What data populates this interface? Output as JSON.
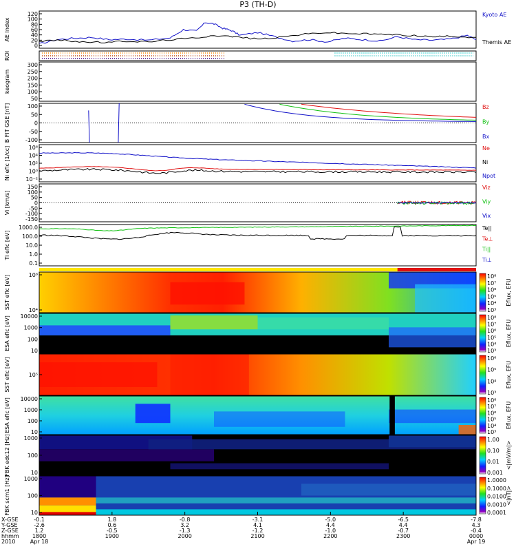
{
  "title": "P3 (TH-D)",
  "colors": {
    "blue": "#1010c8",
    "red": "#e01010",
    "green": "#10c010",
    "black": "#000000",
    "cyan": "#00c8c8",
    "orange": "#ff8c00",
    "yellow": "#ffe600"
  },
  "chart_data": {
    "type": "line",
    "time_axis": {
      "start": "2010-04-18 17:30",
      "end": "2010-04-19 00:30",
      "tick_times": [
        "1800",
        "1900",
        "2000",
        "2100",
        "2200",
        "2300",
        "0000"
      ],
      "rows": [
        {
          "label": "X-GSE",
          "values": [
            "-0.1",
            "1.8",
            "-0.8",
            "-3.1",
            "-5.0",
            "-6.5",
            "-7.8"
          ]
        },
        {
          "label": "Y-GSE",
          "values": [
            "-2.6",
            "0.6",
            "3.2",
            "4.1",
            "4.4",
            "4.4",
            "4.3"
          ]
        },
        {
          "label": "Z-GSE",
          "values": [
            "1.2",
            "-0.5",
            "-1.3",
            "-1.2",
            "-1.0",
            "-0.7",
            "-0.4"
          ]
        },
        {
          "label": "hhmm",
          "values": [
            "1800",
            "1900",
            "2000",
            "2100",
            "2200",
            "2300",
            "0000"
          ]
        },
        {
          "label": "2010",
          "values": [
            "Apr 18",
            "",
            "",
            "",
            "",
            "",
            "Apr 19"
          ]
        }
      ]
    },
    "panels": [
      {
        "id": "ae",
        "ylabel": "AE Index",
        "yticks": [
          "120",
          "100",
          "80",
          "60",
          "40",
          "20",
          "0"
        ],
        "legend": [
          "Kyoto AE",
          "Themis AE"
        ],
        "series": [
          {
            "name": "Kyoto AE",
            "color": "#1010c8",
            "x": [
              0,
              0.04,
              0.08,
              0.12,
              0.16,
              0.2,
              0.25,
              0.3,
              0.33,
              0.36,
              0.38,
              0.4,
              0.42,
              0.44,
              0.46,
              0.5,
              0.54,
              0.58,
              0.62,
              0.66,
              0.7,
              0.74,
              0.78,
              0.82,
              0.86,
              0.9,
              0.94,
              0.98,
              1.0
            ],
            "y": [
              15,
              30,
              35,
              38,
              30,
              32,
              28,
              36,
              65,
              60,
              90,
              85,
              70,
              62,
              45,
              55,
              40,
              25,
              30,
              22,
              35,
              30,
              25,
              40,
              30,
              28,
              32,
              45,
              30
            ]
          },
          {
            "name": "Themis AE",
            "color": "#000000",
            "x": [
              0,
              0.05,
              0.1,
              0.15,
              0.2,
              0.25,
              0.3,
              0.35,
              0.4,
              0.45,
              0.5,
              0.55,
              0.6,
              0.65,
              0.7,
              0.75,
              0.8,
              0.85,
              0.9,
              0.95,
              1.0
            ],
            "y": [
              25,
              28,
              22,
              20,
              25,
              22,
              30,
              35,
              45,
              40,
              32,
              38,
              48,
              55,
              52,
              50,
              48,
              45,
              40,
              42,
              38
            ]
          }
        ]
      },
      {
        "id": "roi",
        "ylabel": "ROI"
      },
      {
        "id": "keogram",
        "ylabel": "keogram",
        "yticks": [
          "300",
          "250",
          "200",
          "150",
          "100",
          "50"
        ]
      },
      {
        "id": "bfit",
        "ylabel": "B FIT GSE [nT]",
        "yticks": [
          "100",
          "50",
          "0",
          "-50",
          "-100"
        ],
        "legend": [
          "Bz",
          "By",
          "Bx"
        ]
      },
      {
        "id": "ni",
        "ylabel": "Ni eflc [1/cc]",
        "yticks": [
          "10⁶",
          "10⁴",
          "10²",
          "10⁰",
          "10⁻²"
        ],
        "legend": [
          "Ne",
          "Ni",
          "Npot"
        ]
      },
      {
        "id": "vi",
        "ylabel": "Vi [km/s]",
        "yticks": [
          "150",
          "100",
          "50",
          "0",
          "-50",
          "-100",
          "-150"
        ],
        "legend": [
          "Viz",
          "Viy",
          "Vix"
        ]
      },
      {
        "id": "ti",
        "ylabel": "Ti eflc [eV]",
        "yticks": [
          "1000.0",
          "100.0",
          "10.0",
          "1.0",
          "0.1"
        ],
        "legend": [
          "Te||",
          "Te⊥",
          "Ti||",
          "Ti⊥"
        ]
      },
      {
        "id": "sst1",
        "ylabel": "SST eflc [eV]",
        "yticks": [
          "10⁶",
          "10⁴"
        ],
        "cbar_label": "Eflux, EFU",
        "cbar_ticks": [
          "10⁸",
          "10⁷",
          "10⁶",
          "10⁵",
          "10⁴",
          "10³"
        ]
      },
      {
        "id": "esa1",
        "ylabel": "ESA eflc [eV]",
        "yticks": [
          "10000",
          "1000",
          "100",
          "10"
        ],
        "cbar_label": "Eflux, EFU",
        "cbar_ticks": [
          "10⁸",
          "10⁷",
          "10⁶",
          "10⁵",
          "10⁴",
          "10³"
        ]
      },
      {
        "id": "sst2",
        "ylabel": "SST eflc [eV]",
        "yticks": [
          "10⁵"
        ],
        "cbar_label": "Eflux, EFU",
        "cbar_ticks": [
          "10⁶",
          "10⁵",
          "10⁴",
          "10³"
        ]
      },
      {
        "id": "esa2",
        "ylabel": "ESA eflc [eV]",
        "yticks": [
          "10000",
          "1000",
          "100",
          "10"
        ],
        "cbar_label": "Eflux, EFU",
        "cbar_ticks": [
          "10⁸",
          "10⁷",
          "10⁶",
          "10⁵",
          "10⁴",
          "10³"
        ]
      },
      {
        "id": "fbk1",
        "ylabel": "FBK edc12 [Hz]",
        "yticks": [
          "1000",
          "100",
          "10"
        ],
        "cbar_label": "<|mV/m|>",
        "cbar_ticks": [
          "1.00",
          "0.10",
          "0.01",
          "0.001"
        ]
      },
      {
        "id": "fbk2",
        "ylabel": "FBK scm1 [Hz]",
        "yticks": [
          "1000",
          "100",
          "10"
        ],
        "cbar_label": "<|nT|>",
        "cbar_ticks": [
          "1.0000",
          "0.1000",
          "0.0100",
          "0.0010",
          "0.0001"
        ]
      }
    ]
  }
}
